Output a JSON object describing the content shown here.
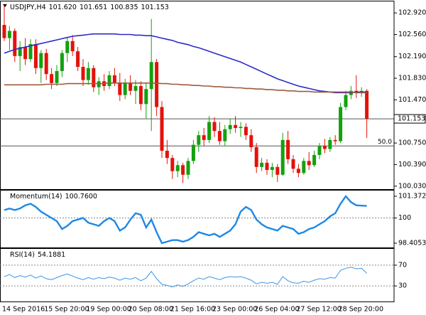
{
  "chart_data": [
    {
      "type": "candlestick",
      "symbol": "USDJPY,H4",
      "header": [
        {
          "value": 101.62,
          "label": "101.620"
        },
        {
          "value": 101.651,
          "label": "101.651"
        },
        {
          "value": 100.835,
          "label": "100.835"
        },
        {
          "value": 101.153,
          "label": "101.153"
        }
      ],
      "categories": [
        "14 Sep 2016",
        null,
        null,
        null,
        null,
        null,
        null,
        null,
        "15 Sep 20:00",
        null,
        null,
        null,
        null,
        null,
        null,
        null,
        "19 Sep 00:00",
        null,
        null,
        null,
        null,
        null,
        null,
        null,
        "20 Sep 08:00",
        null,
        null,
        null,
        null,
        null,
        null,
        null,
        "21 Sep 16:00",
        null,
        null,
        null,
        null,
        null,
        null,
        null,
        "23 Sep 00:00",
        null,
        null,
        null,
        null,
        null,
        null,
        null,
        "26 Sep 04:00",
        null,
        null,
        null,
        null,
        null,
        null,
        null,
        "27 Sep 12:00",
        null,
        null,
        null,
        null,
        null,
        null,
        null,
        "28 Sep 20:00",
        null,
        null,
        null,
        null,
        null
      ],
      "open": [
        102.72,
        102.5,
        102.62,
        102.2,
        102.35,
        102.15,
        102.4,
        102.0,
        102.25,
        101.9,
        101.75,
        101.95,
        102.25,
        102.45,
        102.28,
        102.02,
        101.8,
        102.0,
        101.68,
        101.78,
        101.7,
        101.88,
        101.75,
        101.55,
        101.75,
        101.62,
        101.7,
        101.4,
        101.65,
        102.1,
        101.35,
        100.62,
        100.5,
        100.28,
        100.38,
        100.22,
        100.45,
        100.72,
        100.88,
        100.8,
        101.1,
        100.95,
        100.78,
        100.98,
        101.05,
        101.0,
        101.02,
        100.88,
        100.68,
        100.35,
        100.42,
        100.3,
        100.35,
        100.22,
        100.8,
        100.48,
        100.32,
        100.25,
        100.45,
        100.38,
        100.55,
        100.7,
        100.65,
        100.8,
        100.78,
        101.35,
        101.55,
        101.62,
        101.58,
        101.62
      ],
      "high": [
        103.04,
        102.7,
        102.66,
        102.45,
        102.5,
        102.48,
        102.48,
        102.3,
        102.32,
        102.0,
        102.05,
        102.3,
        102.5,
        102.55,
        102.35,
        102.15,
        102.1,
        102.05,
        101.85,
        101.9,
        101.95,
        102.0,
        101.92,
        101.82,
        101.88,
        101.8,
        101.78,
        101.75,
        102.82,
        102.15,
        101.45,
        100.8,
        100.55,
        100.45,
        100.42,
        100.5,
        100.8,
        100.95,
        101.0,
        101.2,
        101.18,
        101.1,
        101.05,
        101.15,
        101.2,
        101.1,
        101.08,
        100.98,
        100.75,
        100.5,
        100.48,
        100.42,
        100.4,
        100.92,
        100.95,
        100.55,
        100.4,
        100.5,
        100.6,
        100.62,
        100.75,
        100.82,
        100.85,
        100.88,
        101.42,
        101.62,
        101.7,
        101.88,
        101.68,
        101.651
      ],
      "low": [
        102.45,
        102.3,
        102.1,
        101.95,
        102.05,
        102.1,
        101.9,
        101.75,
        101.8,
        101.65,
        101.7,
        101.85,
        102.1,
        102.2,
        101.95,
        101.7,
        101.72,
        101.6,
        101.55,
        101.62,
        101.65,
        101.7,
        101.45,
        101.48,
        101.55,
        101.4,
        101.3,
        101.15,
        100.95,
        101.2,
        100.5,
        100.4,
        100.15,
        100.18,
        100.08,
        100.15,
        100.4,
        100.6,
        100.7,
        100.75,
        100.85,
        100.72,
        100.7,
        100.9,
        100.92,
        100.85,
        100.8,
        100.6,
        100.25,
        100.28,
        100.22,
        100.18,
        100.1,
        100.2,
        100.4,
        100.25,
        100.18,
        100.22,
        100.3,
        100.35,
        100.48,
        100.58,
        100.6,
        100.72,
        100.75,
        101.3,
        101.48,
        101.5,
        101.52,
        100.835
      ],
      "close": [
        102.5,
        102.62,
        102.2,
        102.35,
        102.15,
        102.4,
        102.0,
        102.25,
        101.9,
        101.75,
        101.95,
        102.25,
        102.45,
        102.28,
        102.02,
        101.8,
        102.0,
        101.68,
        101.78,
        101.7,
        101.88,
        101.75,
        101.55,
        101.75,
        101.62,
        101.7,
        101.4,
        101.65,
        102.1,
        101.35,
        100.62,
        100.5,
        100.28,
        100.38,
        100.22,
        100.45,
        100.72,
        100.88,
        100.8,
        101.1,
        100.95,
        100.78,
        100.98,
        101.05,
        101.0,
        101.02,
        100.88,
        100.68,
        100.35,
        100.42,
        100.3,
        100.35,
        100.22,
        100.8,
        100.48,
        100.32,
        100.25,
        100.45,
        100.38,
        100.55,
        100.7,
        100.65,
        100.8,
        100.78,
        101.35,
        101.55,
        101.62,
        101.58,
        101.62,
        101.153
      ],
      "up_color": "#13a10e",
      "down_color": "#e3120b",
      "lines": [
        {
          "color": "#2b2bc8",
          "values": [
            102.25,
            102.28,
            102.31,
            102.33,
            102.35,
            102.37,
            102.39,
            102.41,
            102.43,
            102.45,
            102.47,
            102.49,
            102.51,
            102.53,
            102.54,
            102.55,
            102.56,
            102.57,
            102.57,
            102.57,
            102.57,
            102.57,
            102.56,
            102.56,
            102.56,
            102.55,
            102.55,
            102.54,
            102.54,
            102.52,
            102.5,
            102.48,
            102.46,
            102.43,
            102.41,
            102.39,
            102.36,
            102.34,
            102.31,
            102.28,
            102.25,
            102.22,
            102.19,
            102.16,
            102.13,
            102.1,
            102.06,
            102.02,
            101.98,
            101.94,
            101.9,
            101.86,
            101.82,
            101.79,
            101.76,
            101.73,
            101.7,
            101.68,
            101.66,
            101.64,
            101.62,
            101.61,
            101.6,
            101.59,
            101.59,
            101.59,
            101.59,
            101.6,
            101.6,
            101.6
          ]
        },
        {
          "color": "#9c5a3c",
          "values": [
            101.72,
            101.72,
            101.72,
            101.72,
            101.72,
            101.72,
            101.72,
            101.72,
            101.73,
            101.73,
            101.73,
            101.73,
            101.74,
            101.74,
            101.74,
            101.74,
            101.74,
            101.74,
            101.74,
            101.74,
            101.75,
            101.75,
            101.75,
            101.75,
            101.75,
            101.75,
            101.75,
            101.75,
            101.75,
            101.75,
            101.74,
            101.74,
            101.73,
            101.73,
            101.72,
            101.72,
            101.71,
            101.71,
            101.7,
            101.7,
            101.69,
            101.69,
            101.68,
            101.68,
            101.67,
            101.67,
            101.66,
            101.66,
            101.65,
            101.65,
            101.64,
            101.64,
            101.63,
            101.63,
            101.62,
            101.62,
            101.61,
            101.61,
            101.61,
            101.6,
            101.6,
            101.6,
            101.6,
            101.6,
            101.6,
            101.6,
            101.6,
            101.59,
            101.59,
            101.59
          ]
        }
      ],
      "ylim": [
        99.98,
        103.1
      ],
      "yticks": [
        {
          "value": 102.92,
          "label": "102.920"
        },
        {
          "value": 102.56,
          "label": "102.560"
        },
        {
          "value": 102.19,
          "label": "102.190"
        },
        {
          "value": 101.83,
          "label": "101.830"
        },
        {
          "value": 101.47,
          "label": "101.470"
        },
        {
          "value": 100.75,
          "label": "100.750"
        },
        {
          "value": 100.39,
          "label": "100.390"
        },
        {
          "value": 100.03,
          "label": "100.030"
        }
      ],
      "current_price": {
        "value": 101.153,
        "label": "101.153"
      },
      "levels": [
        {
          "value": 100.7,
          "label": "50.0"
        }
      ]
    },
    {
      "type": "line",
      "title": "Momentum(14)",
      "current": {
        "value": 100.76,
        "label": "100.7600"
      },
      "color": "#1e88e5",
      "values": [
        100.5,
        100.6,
        100.5,
        100.6,
        100.8,
        100.9,
        100.7,
        100.4,
        100.2,
        100.0,
        99.8,
        99.3,
        99.5,
        99.8,
        99.9,
        100.0,
        99.7,
        99.6,
        99.5,
        99.8,
        100.0,
        99.8,
        99.2,
        99.4,
        99.9,
        100.3,
        100.2,
        99.4,
        99.9,
        99.1,
        98.4053,
        98.5,
        98.6,
        98.6,
        98.5,
        98.6,
        98.8,
        99.1,
        99.0,
        98.9,
        99.0,
        98.8,
        99.0,
        99.2,
        99.6,
        100.4,
        100.7,
        100.5,
        99.9,
        99.6,
        99.4,
        99.3,
        99.2,
        99.5,
        99.4,
        99.3,
        99.0,
        99.1,
        99.3,
        99.4,
        99.6,
        99.8,
        100.1,
        100.3,
        100.9,
        101.3729,
        101.0,
        100.8,
        100.78,
        100.76
      ],
      "ylim": [
        98.135,
        101.688
      ],
      "yticks": [
        101.3729,
        100,
        98.4053
      ],
      "levels": [
        100
      ]
    },
    {
      "type": "line",
      "title": "RSI(14)",
      "current": 54.1881,
      "color": "#3c96e6",
      "values": [
        48,
        52,
        46,
        50,
        47,
        51,
        45,
        49,
        44,
        42,
        46,
        50,
        53,
        49,
        45,
        42,
        46,
        43,
        46,
        44,
        47,
        45,
        41,
        45,
        43,
        46,
        40,
        45,
        58,
        44,
        33,
        31,
        28,
        32,
        29,
        34,
        40,
        45,
        43,
        48,
        45,
        42,
        46,
        48,
        47,
        48,
        45,
        41,
        34,
        37,
        35,
        37,
        33,
        48,
        40,
        36,
        35,
        39,
        37,
        41,
        44,
        43,
        46,
        45,
        60,
        64,
        66,
        63,
        64,
        54.1881
      ],
      "ylim": [
        0,
        100
      ],
      "yticks": [
        70,
        30
      ],
      "levels": [
        70,
        30
      ]
    }
  ]
}
